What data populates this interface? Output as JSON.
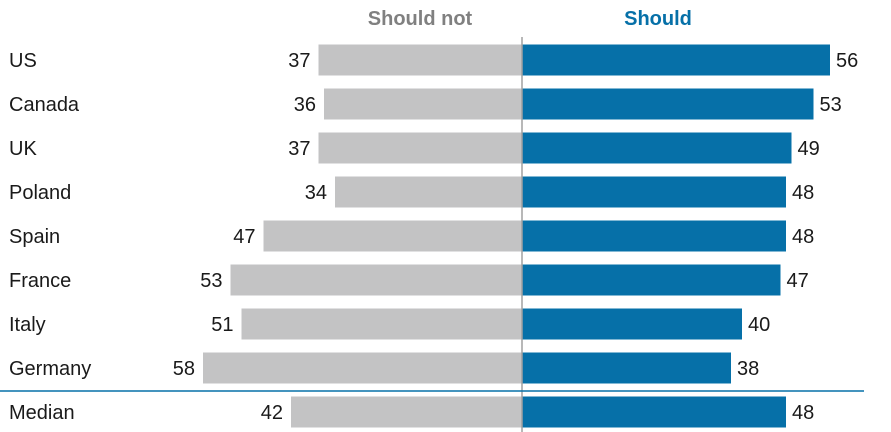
{
  "chart_data": {
    "type": "bar",
    "series": [
      {
        "name": "Should not",
        "color": "#c3c3c4",
        "values": [
          37,
          36,
          37,
          34,
          47,
          53,
          51,
          58,
          42
        ]
      },
      {
        "name": "Should",
        "color": "#0670a8",
        "values": [
          56,
          53,
          49,
          48,
          48,
          47,
          40,
          38,
          48
        ]
      }
    ],
    "categories": [
      "US",
      "Canada",
      "UK",
      "Poland",
      "Spain",
      "France",
      "Italy",
      "Germany",
      "Median"
    ],
    "legend_colors": {
      "should_not": "#808080",
      "should": "#0670a8"
    },
    "divider_color": "#0670a8",
    "center_line_color": "#a0a0a0",
    "legend_placement": "top",
    "grid": false
  }
}
